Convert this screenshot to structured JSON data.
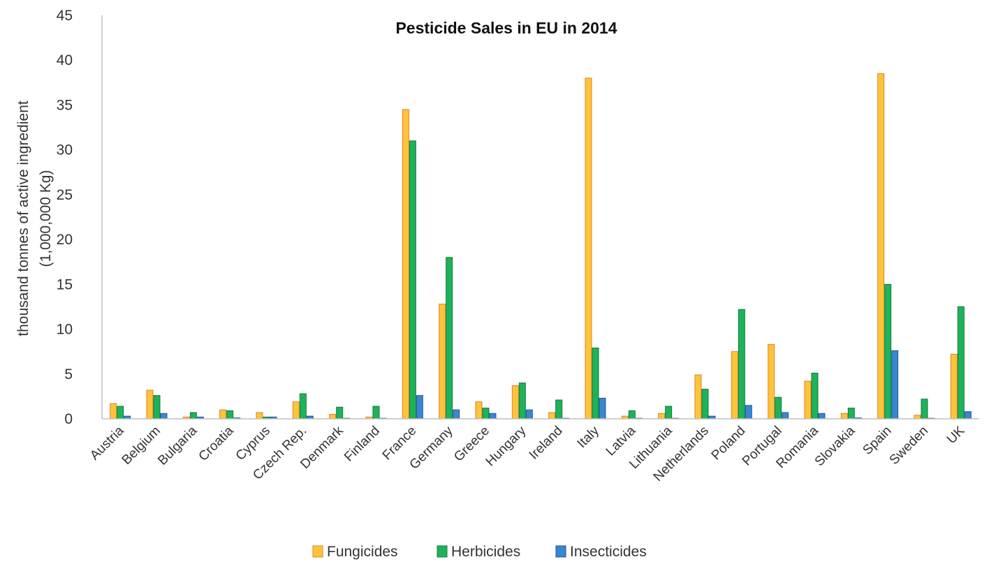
{
  "chart_data": {
    "type": "bar",
    "title": "Pesticide Sales in EU in 2014",
    "ylabel_line1": "thousand  tonnes of active ingredient",
    "ylabel_line2": "(1,000,000 Kg)",
    "xlabel": "",
    "ylim": [
      0,
      45
    ],
    "yticks": [
      "0",
      "5",
      "10",
      "15",
      "20",
      "25",
      "30",
      "35",
      "40",
      "45"
    ],
    "grid": false,
    "legend_position": "bottom",
    "categories": [
      "Austria",
      "Belgium",
      "Bulgaria",
      "Croatia",
      "Cyprus",
      "Czech Rep.",
      "Denmark",
      "Finland",
      "France",
      "Germany",
      "Greece",
      "Hungary",
      "Ireland",
      "Italy",
      "Latvia",
      "Lithuania",
      "Netherlands",
      "Poland",
      "Portugal",
      "Romania",
      "Slovakia",
      "Spain",
      "Sweden",
      "UK"
    ],
    "series": [
      {
        "name": "Fungicides",
        "color": "#FDC43A",
        "edge": "#E0802A",
        "values": [
          1.7,
          3.2,
          0.2,
          1.0,
          0.7,
          1.9,
          0.5,
          0.2,
          34.5,
          12.8,
          1.9,
          3.7,
          0.7,
          38.0,
          0.3,
          0.6,
          4.9,
          7.5,
          8.3,
          4.2,
          0.6,
          38.5,
          0.4,
          7.2
        ]
      },
      {
        "name": "Herbicides",
        "color": "#1DB35A",
        "edge": "#147A3C",
        "values": [
          1.4,
          2.6,
          0.7,
          0.9,
          0.2,
          2.8,
          1.3,
          1.4,
          31.0,
          18.0,
          1.2,
          4.0,
          2.1,
          7.9,
          0.9,
          1.4,
          3.3,
          12.2,
          2.4,
          5.1,
          1.2,
          15.0,
          2.2,
          12.5
        ]
      },
      {
        "name": "Insecticides",
        "color": "#3A86CF",
        "edge": "#245A96",
        "values": [
          0.3,
          0.6,
          0.2,
          0.1,
          0.2,
          0.3,
          0.05,
          0.05,
          2.6,
          1.0,
          0.6,
          1.0,
          0.05,
          2.3,
          0.05,
          0.05,
          0.3,
          1.5,
          0.7,
          0.6,
          0.1,
          7.6,
          0.05,
          0.8
        ]
      }
    ]
  }
}
